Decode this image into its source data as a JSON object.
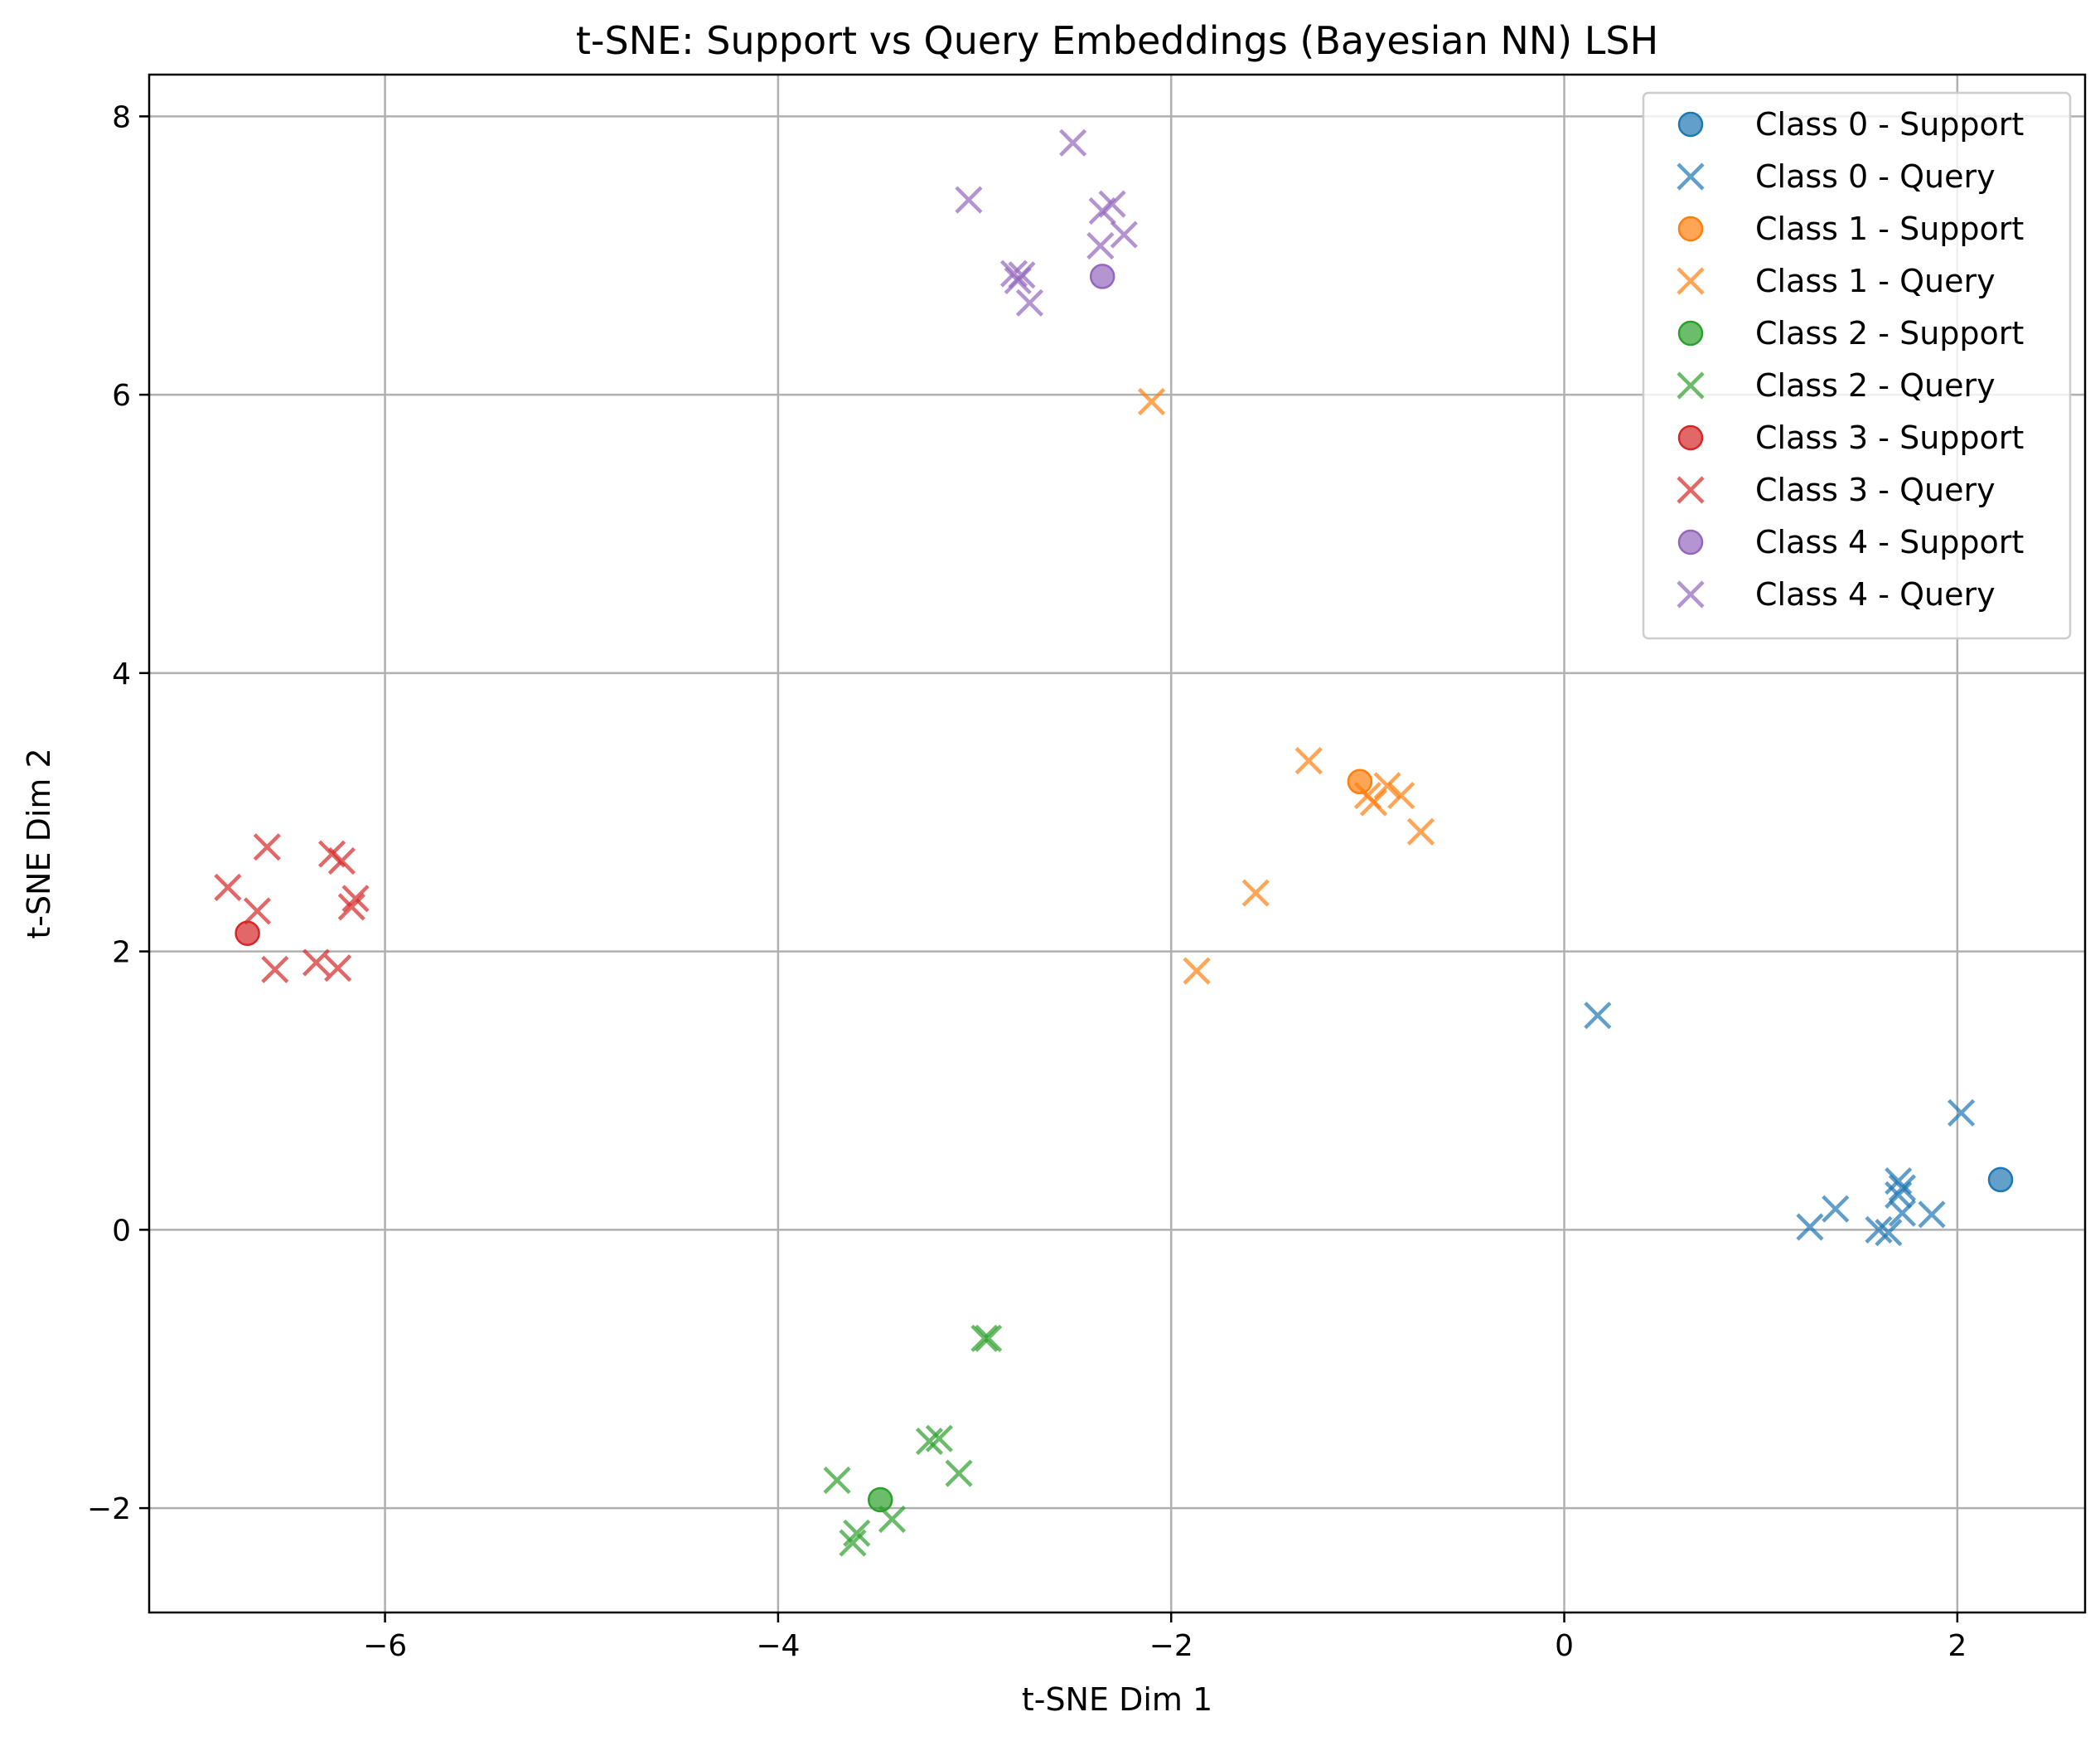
{
  "chart_data": {
    "type": "scatter",
    "title": "t-SNE: Support vs Query Embeddings (Bayesian NN) LSH",
    "xlabel": "t-SNE Dim 1",
    "ylabel": "t-SNE Dim 2",
    "xlim": [
      -7.2,
      2.65
    ],
    "ylim": [
      -2.75,
      8.3
    ],
    "xticks": [
      {
        "value": -6,
        "label": "−6"
      },
      {
        "value": -4,
        "label": "−4"
      },
      {
        "value": -2,
        "label": "−2"
      },
      {
        "value": 0,
        "label": "0"
      },
      {
        "value": 2,
        "label": "2"
      }
    ],
    "yticks": [
      {
        "value": -2,
        "label": "−2"
      },
      {
        "value": 0,
        "label": "0"
      },
      {
        "value": 2,
        "label": "2"
      },
      {
        "value": 4,
        "label": "4"
      },
      {
        "value": 6,
        "label": "6"
      },
      {
        "value": 8,
        "label": "8"
      }
    ],
    "grid": true,
    "legend_position": "top-right",
    "series": [
      {
        "name": "Class 0 - Support",
        "marker": "circle",
        "color": "#1f77b4",
        "points": [
          [
            2.22,
            0.36
          ]
        ]
      },
      {
        "name": "Class 0 - Query",
        "marker": "x",
        "color": "#1f77b4",
        "points": [
          [
            0.17,
            1.54
          ],
          [
            2.02,
            0.84
          ],
          [
            1.7,
            0.35
          ],
          [
            1.72,
            0.3
          ],
          [
            1.7,
            0.25
          ],
          [
            1.38,
            0.15
          ],
          [
            1.25,
            0.02
          ],
          [
            1.6,
            0.0
          ],
          [
            1.65,
            -0.02
          ],
          [
            1.72,
            0.12
          ],
          [
            1.87,
            0.11
          ]
        ]
      },
      {
        "name": "Class 1 - Support",
        "marker": "circle",
        "color": "#ff7f0e",
        "points": [
          [
            -1.04,
            3.22
          ]
        ]
      },
      {
        "name": "Class 1 - Query",
        "marker": "x",
        "color": "#ff7f0e",
        "points": [
          [
            -2.1,
            5.95
          ],
          [
            -1.3,
            3.37
          ],
          [
            -0.9,
            3.19
          ],
          [
            -0.83,
            3.12
          ],
          [
            -1.0,
            3.12
          ],
          [
            -0.97,
            3.07
          ],
          [
            -0.73,
            2.86
          ],
          [
            -1.57,
            2.42
          ],
          [
            -1.87,
            1.86
          ]
        ]
      },
      {
        "name": "Class 2 - Support",
        "marker": "circle",
        "color": "#2ca02c",
        "points": [
          [
            -3.48,
            -1.94
          ]
        ]
      },
      {
        "name": "Class 2 - Query",
        "marker": "x",
        "color": "#2ca02c",
        "points": [
          [
            -2.95,
            -0.78
          ],
          [
            -2.93,
            -0.78
          ],
          [
            -3.23,
            -1.52
          ],
          [
            -3.18,
            -1.5
          ],
          [
            -3.08,
            -1.75
          ],
          [
            -3.7,
            -1.8
          ],
          [
            -3.42,
            -2.08
          ],
          [
            -3.6,
            -2.18
          ],
          [
            -3.62,
            -2.25
          ]
        ]
      },
      {
        "name": "Class 3 - Support",
        "marker": "circle",
        "color": "#d62728",
        "points": [
          [
            -6.7,
            2.13
          ]
        ]
      },
      {
        "name": "Class 3 - Query",
        "marker": "x",
        "color": "#d62728",
        "points": [
          [
            -6.6,
            2.75
          ],
          [
            -6.27,
            2.7
          ],
          [
            -6.22,
            2.65
          ],
          [
            -6.8,
            2.46
          ],
          [
            -6.15,
            2.38
          ],
          [
            -6.17,
            2.32
          ],
          [
            -6.65,
            2.29
          ],
          [
            -6.35,
            1.92
          ],
          [
            -6.24,
            1.88
          ],
          [
            -6.56,
            1.87
          ]
        ]
      },
      {
        "name": "Class 4 - Support",
        "marker": "circle",
        "color": "#9467bd",
        "points": [
          [
            -2.35,
            6.85
          ]
        ]
      },
      {
        "name": "Class 4 - Query",
        "marker": "x",
        "color": "#9467bd",
        "points": [
          [
            -2.5,
            7.81
          ],
          [
            -3.03,
            7.4
          ],
          [
            -2.3,
            7.37
          ],
          [
            -2.35,
            7.32
          ],
          [
            -2.24,
            7.15
          ],
          [
            -2.36,
            7.07
          ],
          [
            -2.8,
            6.87
          ],
          [
            -2.76,
            6.86
          ],
          [
            -2.78,
            6.82
          ],
          [
            -2.72,
            6.66
          ]
        ]
      }
    ]
  }
}
